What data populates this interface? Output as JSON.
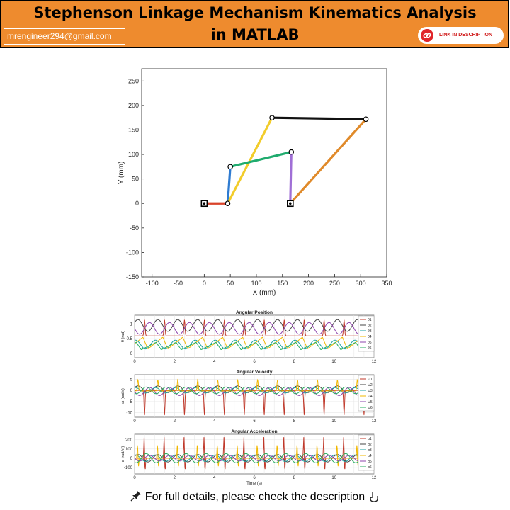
{
  "header": {
    "title_line1": "Stephenson Linkage Mechanism Kinematics Analysis",
    "title_line2": "in MATLAB",
    "email": "mrengineer294@gmail.com",
    "link_label": "LINK IN DESCRIPTION",
    "background_color": "#ee8b2e",
    "icon": "link-icon"
  },
  "footer": {
    "text": "For full details, please check the description",
    "left_icon": "pushpin-icon",
    "right_icon": "pointing-down-icon"
  },
  "chart_data": [
    {
      "type": "line",
      "title": "",
      "xlabel": "X (mm)",
      "ylabel": "Y (mm)",
      "xlim": [
        -120,
        350
      ],
      "ylim": [
        -150,
        275
      ],
      "xticks": [
        -100,
        -50,
        0,
        50,
        100,
        150,
        200,
        250,
        300,
        350
      ],
      "yticks": [
        -150,
        -100,
        -50,
        0,
        50,
        100,
        150,
        200,
        250
      ],
      "grid": false,
      "links": [
        {
          "from": [
            0,
            0
          ],
          "to": [
            45,
            0
          ],
          "color": "#d9432a"
        },
        {
          "from": [
            45,
            0
          ],
          "to": [
            50,
            75
          ],
          "color": "#2e7bd1"
        },
        {
          "from": [
            45,
            0
          ],
          "to": [
            130,
            175
          ],
          "color": "#f2cc2a"
        },
        {
          "from": [
            50,
            75
          ],
          "to": [
            167,
            105
          ],
          "color": "#1fab6e"
        },
        {
          "from": [
            167,
            105
          ],
          "to": [
            165,
            0
          ],
          "color": "#a06fd6"
        },
        {
          "from": [
            130,
            175
          ],
          "to": [
            310,
            172
          ],
          "color": "#111111"
        },
        {
          "from": [
            165,
            0
          ],
          "to": [
            310,
            172
          ],
          "color": "#e08a2a"
        }
      ],
      "joints": [
        [
          45,
          0
        ],
        [
          50,
          75
        ],
        [
          130,
          175
        ],
        [
          167,
          105
        ],
        [
          310,
          172
        ]
      ],
      "ground_pivots": [
        [
          0,
          0
        ],
        [
          165,
          0
        ]
      ]
    },
    {
      "type": "line",
      "title": "Angular Position",
      "xlabel": "",
      "ylabel": "θ (rad)",
      "xlim": [
        0,
        12
      ],
      "ylim": [
        -0.15,
        1.3
      ],
      "xticks": [
        0,
        2,
        4,
        6,
        8,
        10,
        12
      ],
      "yticks": [
        0,
        0.5,
        1
      ],
      "period": 1.0,
      "grid": true,
      "legend": "right",
      "series": [
        {
          "name": "θ1",
          "color": "#c0392b",
          "amp": 0.55,
          "offset": 0.62,
          "phase": 0.0,
          "shape": "spike"
        },
        {
          "name": "θ2",
          "color": "#444444",
          "amp": 0.2,
          "offset": 0.95,
          "phase": 0.5,
          "shape": "sine"
        },
        {
          "name": "θ3",
          "color": "#1aa3a3",
          "amp": 0.15,
          "offset": 0.3,
          "phase": 1.2,
          "shape": "sine"
        },
        {
          "name": "θ4",
          "color": "#f2b800",
          "amp": 0.4,
          "offset": 0.35,
          "phase": 2.0,
          "shape": "saw"
        },
        {
          "name": "θ5",
          "color": "#8e44ad",
          "amp": 0.2,
          "offset": 0.85,
          "phase": 3.0,
          "shape": "sine"
        },
        {
          "name": "θ6",
          "color": "#27ae60",
          "amp": 0.25,
          "offset": 0.25,
          "phase": 4.0,
          "shape": "saw"
        }
      ]
    },
    {
      "type": "line",
      "title": "Angular Velocity",
      "xlabel": "",
      "ylabel": "ω (rad/s)",
      "xlim": [
        0,
        12
      ],
      "ylim": [
        -12,
        7
      ],
      "xticks": [
        0,
        2,
        4,
        6,
        8,
        10,
        12
      ],
      "yticks": [
        -10,
        -5,
        0,
        5
      ],
      "period": 1.0,
      "grid": true,
      "legend": "right",
      "series": [
        {
          "name": "ω1",
          "color": "#c0392b",
          "amp": 11,
          "offset": 0,
          "phase": 0.0,
          "shape": "spike-down"
        },
        {
          "name": "ω2",
          "color": "#444444",
          "amp": 1.5,
          "offset": 0.5,
          "phase": 0.5,
          "shape": "sine"
        },
        {
          "name": "ω3",
          "color": "#1aa3a3",
          "amp": 1.2,
          "offset": 0,
          "phase": 1.2,
          "shape": "sine"
        },
        {
          "name": "ω4",
          "color": "#f2b800",
          "amp": 5,
          "offset": 0,
          "phase": 2.0,
          "shape": "spike"
        },
        {
          "name": "ω5",
          "color": "#8e44ad",
          "amp": 1.8,
          "offset": -0.5,
          "phase": 3.0,
          "shape": "sine"
        },
        {
          "name": "ω6",
          "color": "#27ae60",
          "amp": 1.5,
          "offset": 0,
          "phase": 4.0,
          "shape": "sine"
        }
      ]
    },
    {
      "type": "line",
      "title": "Angular Acceleration",
      "xlabel": "Time (s)",
      "ylabel": "α (rad/s²)",
      "xlim": [
        0,
        12
      ],
      "ylim": [
        -170,
        260
      ],
      "xticks": [
        0,
        2,
        4,
        6,
        8,
        10,
        12
      ],
      "yticks": [
        -100,
        0,
        100,
        200
      ],
      "period": 1.0,
      "grid": true,
      "legend": "right",
      "series": [
        {
          "name": "α1",
          "color": "#c0392b",
          "amp": 230,
          "offset": 0,
          "phase": 0.0,
          "shape": "bipolar"
        },
        {
          "name": "α2",
          "color": "#444444",
          "amp": 40,
          "offset": 0,
          "phase": 0.5,
          "shape": "sine"
        },
        {
          "name": "α3",
          "color": "#1aa3a3",
          "amp": 35,
          "offset": 0,
          "phase": 1.2,
          "shape": "sine"
        },
        {
          "name": "α4",
          "color": "#f2b800",
          "amp": 150,
          "offset": 0,
          "phase": 2.0,
          "shape": "bipolar"
        },
        {
          "name": "α5",
          "color": "#8e44ad",
          "amp": 30,
          "offset": 0,
          "phase": 3.0,
          "shape": "sine"
        },
        {
          "name": "α6",
          "color": "#27ae60",
          "amp": 50,
          "offset": 0,
          "phase": 4.0,
          "shape": "sine"
        }
      ]
    }
  ]
}
